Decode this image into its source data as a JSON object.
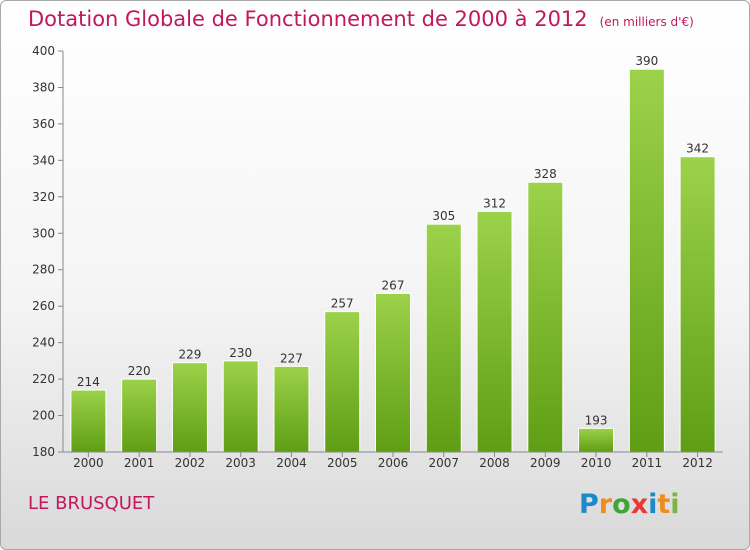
{
  "header": {
    "title": "Dotation Globale de Fonctionnement de 2000 à 2012",
    "unit": "(en milliers d'€)"
  },
  "footer": {
    "commune": "LE BRUSQUET",
    "logo_letters": [
      "P",
      "r",
      "o",
      "x",
      "i",
      "t",
      "i"
    ],
    "logo_colors": [
      "#1e88c8",
      "#f08c1e",
      "#3fa535",
      "#e53935",
      "#1e88c8",
      "#f08c1e",
      "#7cb342"
    ]
  },
  "colors": {
    "accent": "#c2185b",
    "bar_light": "#9bd24a",
    "bar_dark": "#5f9e14"
  },
  "chart_data": {
    "type": "bar",
    "title": "Dotation Globale de Fonctionnement de 2000 à 2012",
    "subtitle": "(en milliers d'€)",
    "xlabel": "",
    "ylabel": "",
    "categories": [
      "2000",
      "2001",
      "2002",
      "2003",
      "2004",
      "2005",
      "2006",
      "2007",
      "2008",
      "2009",
      "2010",
      "2011",
      "2012"
    ],
    "values": [
      214,
      220,
      229,
      230,
      227,
      257,
      267,
      305,
      312,
      328,
      193,
      390,
      342
    ],
    "ylim": [
      180,
      400
    ],
    "yticks": [
      180,
      200,
      220,
      240,
      260,
      280,
      300,
      320,
      340,
      360,
      380,
      400
    ],
    "grid": false,
    "legend": "none"
  }
}
